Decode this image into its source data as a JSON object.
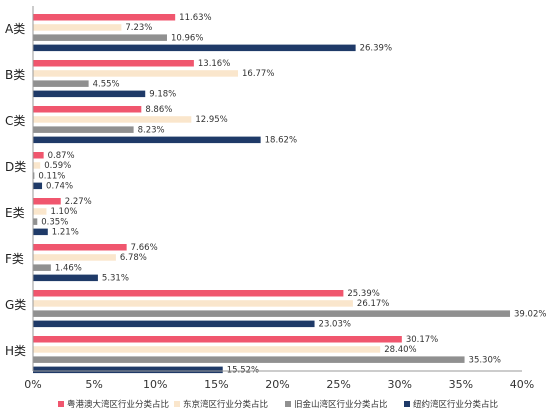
{
  "chart_data": {
    "type": "bar",
    "orientation": "horizontal",
    "categories": [
      "A类",
      "B类",
      "C类",
      "D类",
      "E类",
      "F类",
      "G类",
      "H类"
    ],
    "series": [
      {
        "name": "粤港澳大湾区行业分类占比",
        "color": "#f0566e",
        "values": [
          11.63,
          13.16,
          8.86,
          0.87,
          2.27,
          7.66,
          25.39,
          30.17
        ],
        "labels": [
          "11.63%",
          "13.16%",
          "8.86%",
          "0.87%",
          "2.27%",
          "7.66%",
          "25.39%",
          "30.17%"
        ]
      },
      {
        "name": "东京湾区行业分类占比",
        "color": "#fae6cc",
        "values": [
          7.23,
          16.77,
          12.95,
          0.59,
          1.1,
          6.78,
          26.17,
          28.4
        ],
        "labels": [
          "7.23%",
          "16.77%",
          "12.95%",
          "0.59%",
          "1.10%",
          "6.78%",
          "26.17%",
          "28.40%"
        ]
      },
      {
        "name": "旧金山湾区行业分类占比",
        "color": "#909090",
        "values": [
          10.96,
          4.55,
          8.23,
          0.11,
          0.35,
          1.46,
          39.02,
          35.3
        ],
        "labels": [
          "10.96%",
          "4.55%",
          "8.23%",
          "0.11%",
          "0.35%",
          "1.46%",
          "39.02%",
          "35.30%"
        ]
      },
      {
        "name": "纽约湾区行业分类占比",
        "color": "#1f3a68",
        "values": [
          26.39,
          9.18,
          18.62,
          0.74,
          1.21,
          5.31,
          23.03,
          15.52
        ],
        "labels": [
          "26.39%",
          "9.18%",
          "18.62%",
          "0.74%",
          "1.21%",
          "5.31%",
          "23.03%",
          "15.52%"
        ]
      }
    ],
    "xlim": [
      0,
      40
    ],
    "xticks": [
      0,
      5,
      10,
      15,
      20,
      25,
      30,
      35,
      40
    ],
    "xtick_labels": [
      "0%",
      "5%",
      "10%",
      "15%",
      "20%",
      "25%",
      "30%",
      "35%",
      "40%"
    ],
    "grid": false,
    "legend_position": "bottom"
  }
}
